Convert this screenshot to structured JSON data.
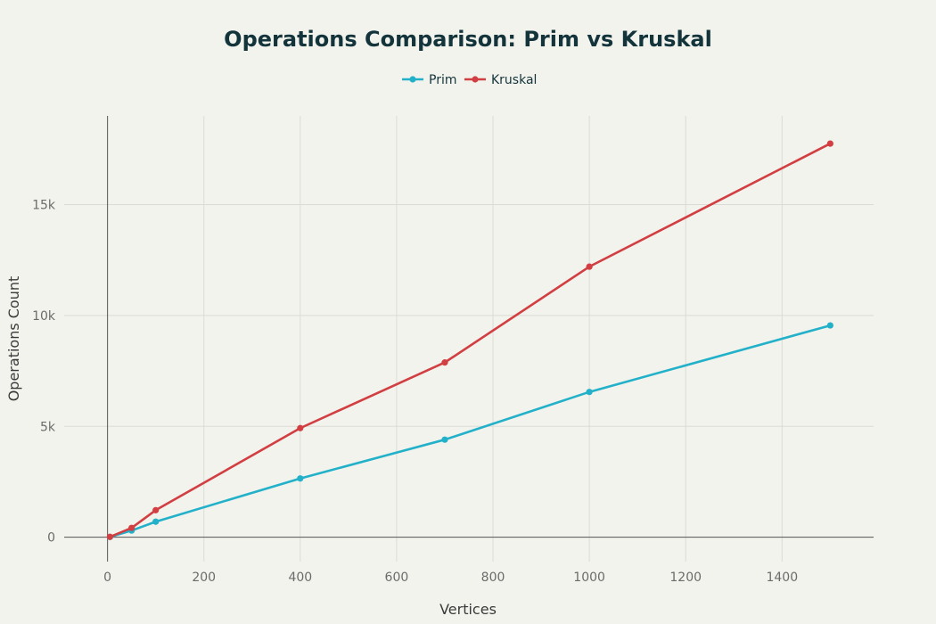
{
  "chart_data": {
    "type": "line",
    "title": "Operations Comparison: Prim vs Kruskal",
    "xlabel": "Vertices",
    "ylabel": "Operations Count",
    "xlim": [
      -90,
      1590
    ],
    "ylim": [
      -1100,
      19000
    ],
    "x_ticks": [
      0,
      200,
      400,
      600,
      800,
      1000,
      1200,
      1400
    ],
    "x_tick_labels": [
      "0",
      "200",
      "400",
      "600",
      "800",
      "1000",
      "1200",
      "1400"
    ],
    "y_ticks": [
      0,
      5000,
      10000,
      15000
    ],
    "y_tick_labels": [
      "0",
      "5k",
      "10k",
      "15k"
    ],
    "grid": true,
    "legend_position": "top-center",
    "series": [
      {
        "name": "Prim",
        "color": "#22b1c9",
        "x": [
          5,
          50,
          100,
          400,
          700,
          1000,
          1500
        ],
        "y": [
          10,
          300,
          700,
          2650,
          4400,
          6550,
          9550
        ]
      },
      {
        "name": "Kruskal",
        "color": "#d13f42",
        "x": [
          5,
          50,
          100,
          400,
          700,
          1000,
          1500
        ],
        "y": [
          15,
          420,
          1220,
          4920,
          7880,
          12200,
          17750
        ]
      }
    ]
  }
}
